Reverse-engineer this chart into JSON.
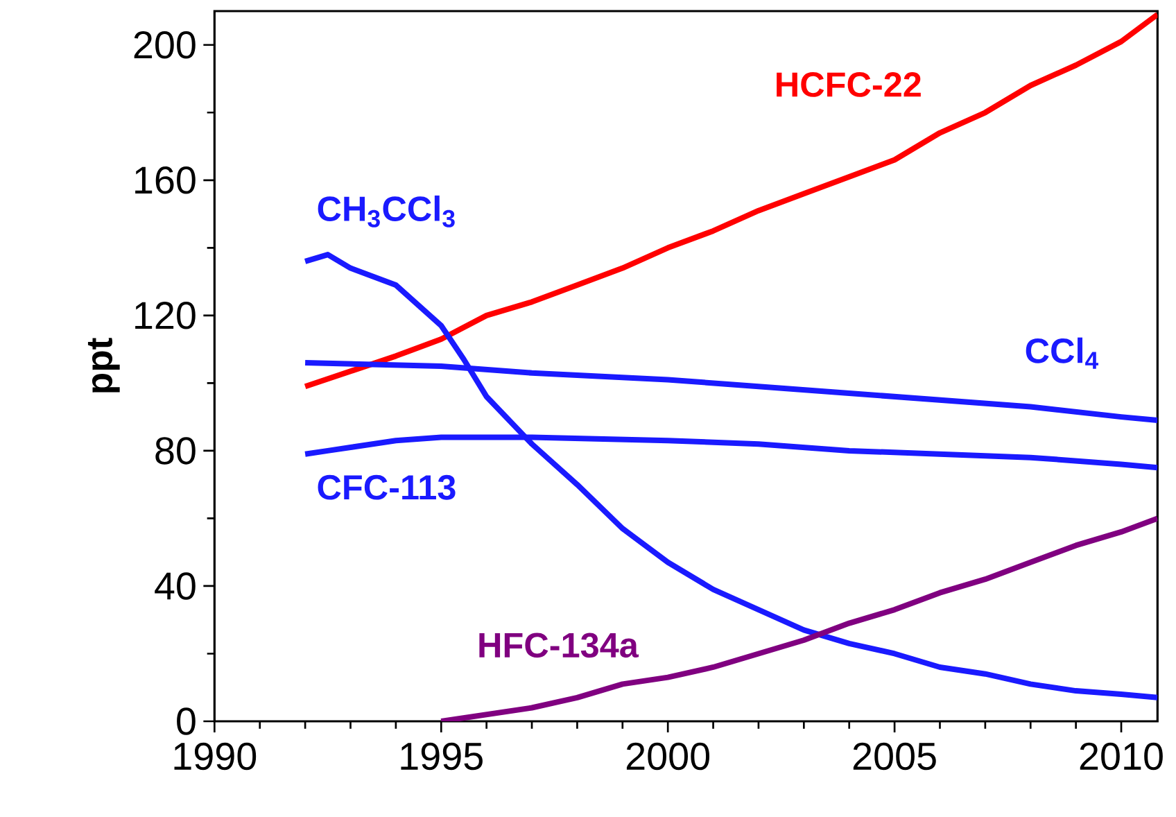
{
  "chart_data": {
    "type": "line",
    "ylabel": "ppt",
    "xlim": [
      1990,
      2010.8
    ],
    "ylim": [
      0,
      210
    ],
    "xticks": [
      1990,
      1995,
      2000,
      2005,
      2010
    ],
    "yticks": [
      0,
      40,
      80,
      120,
      160,
      200
    ],
    "grid": false,
    "marker": "none",
    "line_style": "solid",
    "series": [
      {
        "name": "HCFC-22",
        "color": "#ff0000",
        "x": [
          1992,
          1994,
          1995,
          1996,
          1997,
          1998,
          1999,
          2000,
          2001,
          2002,
          2003,
          2004,
          2005,
          2006,
          2007,
          2008,
          2009,
          2010,
          2010.8
        ],
        "values": [
          99,
          108,
          113,
          120,
          124,
          129,
          134,
          140,
          145,
          151,
          156,
          161,
          166,
          174,
          180,
          188,
          194,
          201,
          209
        ]
      },
      {
        "name": "CH$_{3}$CCl$_{3}$",
        "color": "#1a1aff",
        "x": [
          1992,
          1992.5,
          1993,
          1994,
          1995,
          1995.5,
          1996,
          1997,
          1998,
          1999,
          2000,
          2001,
          2002,
          2003,
          2004,
          2005,
          2006,
          2007,
          2008,
          2009,
          2010,
          2010.8
        ],
        "values": [
          136,
          138,
          134,
          129,
          117,
          107,
          96,
          82,
          70,
          57,
          47,
          39,
          33,
          27,
          23,
          20,
          16,
          14,
          11,
          9,
          8,
          7
        ]
      },
      {
        "name": "CCl$_{4}$",
        "color": "#1a1aff",
        "x": [
          1992,
          1995,
          1997,
          2000,
          2002,
          2004,
          2006,
          2008,
          2010,
          2010.8
        ],
        "values": [
          106,
          105,
          103,
          101,
          99,
          97,
          95,
          93,
          90,
          89
        ]
      },
      {
        "name": "CFC-113",
        "color": "#1a1aff",
        "x": [
          1992,
          1992.5,
          1993,
          1994,
          1995,
          1997,
          2000,
          2002,
          2004,
          2006,
          2008,
          2010,
          2010.8
        ],
        "values": [
          79,
          80,
          81,
          83,
          84,
          84,
          83,
          82,
          80,
          79,
          78,
          76,
          75
        ]
      },
      {
        "name": "HFC-134a",
        "color": "#800080",
        "x": [
          1995,
          1996,
          1997,
          1998,
          1999,
          2000,
          2001,
          2002,
          2003,
          2004,
          2005,
          2006,
          2007,
          2008,
          2009,
          2010,
          2010.8
        ],
        "values": [
          0,
          2,
          4,
          7,
          11,
          13,
          16,
          20,
          24,
          29,
          33,
          38,
          42,
          47,
          52,
          56,
          60
        ]
      }
    ]
  }
}
